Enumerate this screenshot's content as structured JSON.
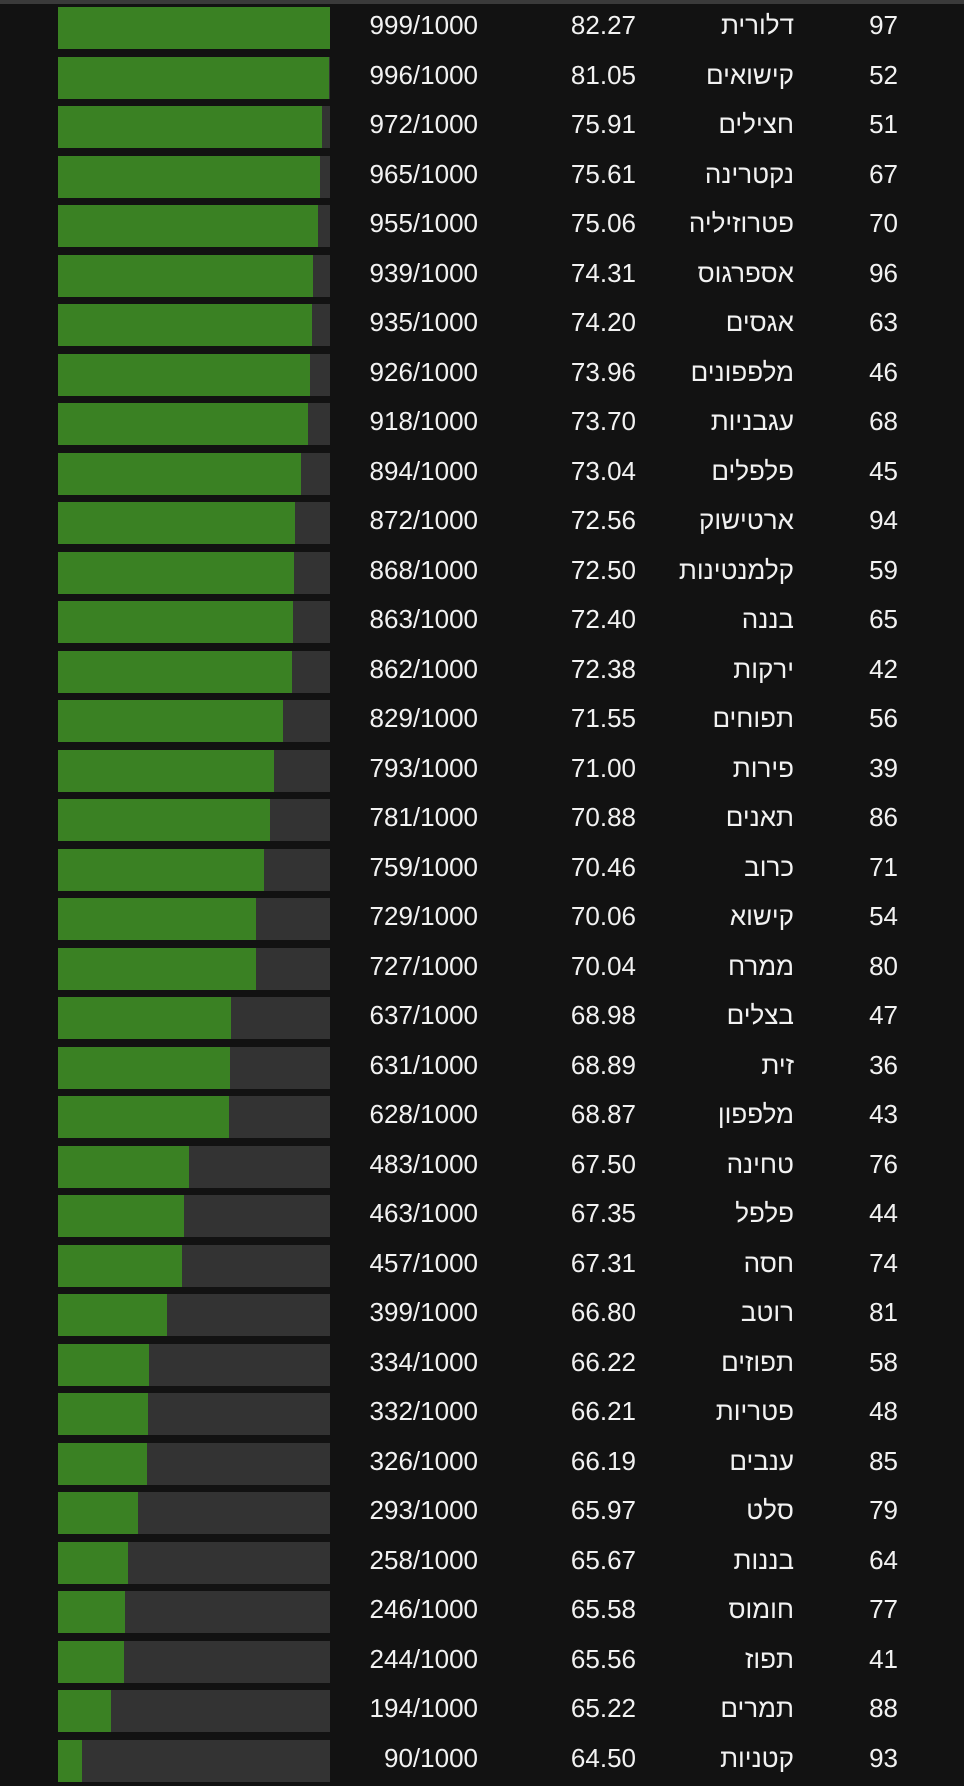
{
  "colors": {
    "background": "#121212",
    "bar_track": "#333333",
    "bar_fill": "#3a8123",
    "text": "#f2f2f2"
  },
  "rows": [
    {
      "id": "97",
      "name": "דלורית",
      "avg": "82.27",
      "score": "999/1000",
      "progress": 0.999
    },
    {
      "id": "52",
      "name": "קישואים",
      "avg": "81.05",
      "score": "996/1000",
      "progress": 0.996
    },
    {
      "id": "51",
      "name": "חצילים",
      "avg": "75.91",
      "score": "972/1000",
      "progress": 0.972
    },
    {
      "id": "67",
      "name": "נקטרינה",
      "avg": "75.61",
      "score": "965/1000",
      "progress": 0.965
    },
    {
      "id": "70",
      "name": "פטרוזיליה",
      "avg": "75.06",
      "score": "955/1000",
      "progress": 0.955
    },
    {
      "id": "96",
      "name": "אספרגוס",
      "avg": "74.31",
      "score": "939/1000",
      "progress": 0.939
    },
    {
      "id": "63",
      "name": "אגסים",
      "avg": "74.20",
      "score": "935/1000",
      "progress": 0.935
    },
    {
      "id": "46",
      "name": "מלפפונים",
      "avg": "73.96",
      "score": "926/1000",
      "progress": 0.926
    },
    {
      "id": "68",
      "name": "עגבניות",
      "avg": "73.70",
      "score": "918/1000",
      "progress": 0.918
    },
    {
      "id": "45",
      "name": "פלפלים",
      "avg": "73.04",
      "score": "894/1000",
      "progress": 0.894
    },
    {
      "id": "94",
      "name": "ארטישוק",
      "avg": "72.56",
      "score": "872/1000",
      "progress": 0.872
    },
    {
      "id": "59",
      "name": "קלמנטינות",
      "avg": "72.50",
      "score": "868/1000",
      "progress": 0.868
    },
    {
      "id": "65",
      "name": "בננה",
      "avg": "72.40",
      "score": "863/1000",
      "progress": 0.863
    },
    {
      "id": "42",
      "name": "ירקות",
      "avg": "72.38",
      "score": "862/1000",
      "progress": 0.862
    },
    {
      "id": "56",
      "name": "תפוחים",
      "avg": "71.55",
      "score": "829/1000",
      "progress": 0.829
    },
    {
      "id": "39",
      "name": "פירות",
      "avg": "71.00",
      "score": "793/1000",
      "progress": 0.793
    },
    {
      "id": "86",
      "name": "תאנים",
      "avg": "70.88",
      "score": "781/1000",
      "progress": 0.781
    },
    {
      "id": "71",
      "name": "כרוב",
      "avg": "70.46",
      "score": "759/1000",
      "progress": 0.759
    },
    {
      "id": "54",
      "name": "קישוא",
      "avg": "70.06",
      "score": "729/1000",
      "progress": 0.729
    },
    {
      "id": "80",
      "name": "ממרח",
      "avg": "70.04",
      "score": "727/1000",
      "progress": 0.727
    },
    {
      "id": "47",
      "name": "בצלים",
      "avg": "68.98",
      "score": "637/1000",
      "progress": 0.637
    },
    {
      "id": "36",
      "name": "זית",
      "avg": "68.89",
      "score": "631/1000",
      "progress": 0.631
    },
    {
      "id": "43",
      "name": "מלפפון",
      "avg": "68.87",
      "score": "628/1000",
      "progress": 0.628
    },
    {
      "id": "76",
      "name": "טחינה",
      "avg": "67.50",
      "score": "483/1000",
      "progress": 0.483
    },
    {
      "id": "44",
      "name": "פלפל",
      "avg": "67.35",
      "score": "463/1000",
      "progress": 0.463
    },
    {
      "id": "74",
      "name": "חסה",
      "avg": "67.31",
      "score": "457/1000",
      "progress": 0.457
    },
    {
      "id": "81",
      "name": "רוטב",
      "avg": "66.80",
      "score": "399/1000",
      "progress": 0.399
    },
    {
      "id": "58",
      "name": "תפוזים",
      "avg": "66.22",
      "score": "334/1000",
      "progress": 0.334
    },
    {
      "id": "48",
      "name": "פטריות",
      "avg": "66.21",
      "score": "332/1000",
      "progress": 0.332
    },
    {
      "id": "85",
      "name": "ענבים",
      "avg": "66.19",
      "score": "326/1000",
      "progress": 0.326
    },
    {
      "id": "79",
      "name": "סלט",
      "avg": "65.97",
      "score": "293/1000",
      "progress": 0.293
    },
    {
      "id": "64",
      "name": "בננות",
      "avg": "65.67",
      "score": "258/1000",
      "progress": 0.258
    },
    {
      "id": "77",
      "name": "חומוס",
      "avg": "65.58",
      "score": "246/1000",
      "progress": 0.246
    },
    {
      "id": "41",
      "name": "תפוז",
      "avg": "65.56",
      "score": "244/1000",
      "progress": 0.244
    },
    {
      "id": "88",
      "name": "תמרים",
      "avg": "65.22",
      "score": "194/1000",
      "progress": 0.194
    },
    {
      "id": "93",
      "name": "קטניות",
      "avg": "64.50",
      "score": "90/1000",
      "progress": 0.09
    }
  ]
}
